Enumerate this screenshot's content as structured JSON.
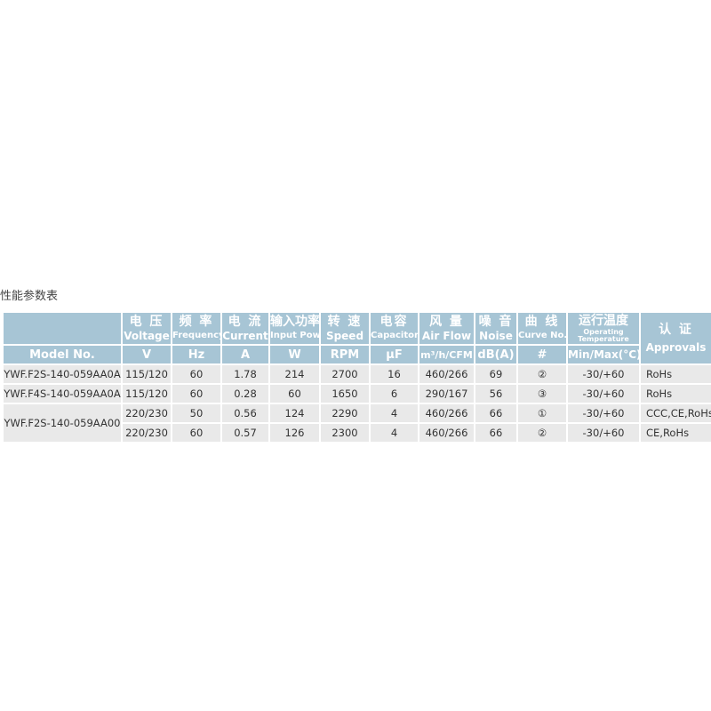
{
  "title": "性能参数表",
  "colors": {
    "header_bg": "#a7c5d5",
    "row_bg": "#e9e9e9"
  },
  "headers": [
    {
      "cn": "电 压",
      "en": "Voltage",
      "unit": "V"
    },
    {
      "cn": "频 率",
      "en": "Frequency",
      "unit": "Hz"
    },
    {
      "cn": "电 流",
      "en": "Current",
      "unit": "A"
    },
    {
      "cn": "输入功率",
      "en": "Input Power",
      "unit": "W"
    },
    {
      "cn": "转 速",
      "en": "Speed",
      "unit": "RPM"
    },
    {
      "cn": "电容",
      "en": "Capacitor",
      "unit": "μF"
    },
    {
      "cn": "风 量",
      "en": "Air Flow",
      "unit": "m³/h/CFM"
    },
    {
      "cn": "噪 音",
      "en": "Noise",
      "unit": "dB(A)"
    },
    {
      "cn": "曲 线",
      "en": "Curve No.",
      "unit": "#"
    },
    {
      "cn": "运行温度",
      "en1": "Operating",
      "en2": "Temperature",
      "unit": "Min/Max(°C)"
    },
    {
      "cn": "认 证",
      "en": "Approvals"
    }
  ],
  "model_header": "Model No.",
  "rows": [
    {
      "model": "YWF.F2S-140-059AA0A",
      "v": "115/120",
      "hz": "60",
      "a": "1.78",
      "w": "214",
      "rpm": "2700",
      "uf": "16",
      "flow": "460/266",
      "db": "69",
      "curve": "②",
      "temp": "-30/+60",
      "appr": "RoHs"
    },
    {
      "model": "YWF.F4S-140-059AA0A",
      "v": "115/120",
      "hz": "60",
      "a": "0.28",
      "w": "60",
      "rpm": "1650",
      "uf": "6",
      "flow": "290/167",
      "db": "56",
      "curve": "③",
      "temp": "-30/+60",
      "appr": "RoHs"
    },
    {
      "model": "YWF.F2S-140-059AA00",
      "v": "220/230",
      "hz": "50",
      "a": "0.56",
      "w": "124",
      "rpm": "2290",
      "uf": "4",
      "flow": "460/266",
      "db": "66",
      "curve": "①",
      "temp": "-30/+60",
      "appr": "CCC,CE,RoHs"
    },
    {
      "v": "220/230",
      "hz": "60",
      "a": "0.57",
      "w": "126",
      "rpm": "2300",
      "uf": "4",
      "flow": "460/266",
      "db": "66",
      "curve": "②",
      "temp": "-30/+60",
      "appr": "CE,RoHs"
    }
  ]
}
